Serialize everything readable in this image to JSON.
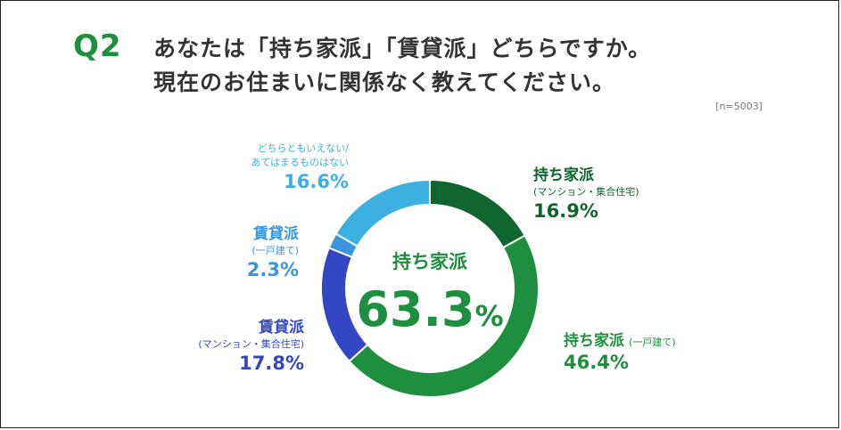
{
  "question": {
    "number": "Q2",
    "line1": "あなたは「持ち家派」「賃貸派」どちらですか。",
    "line2": "現在のお住まいに関係なく教えてください。",
    "sample": "[n=5003]"
  },
  "center": {
    "title": "持ち家派",
    "value": "63.3",
    "unit": "%"
  },
  "colors": {
    "accent": "#1e8f3e",
    "own_mansion": "#0f6530",
    "own_house": "#1e8f3e",
    "rent_mansion": "#3347c4",
    "rent_house": "#3a95dc",
    "neither": "#3eb0e0"
  },
  "chart_data": {
    "type": "pie",
    "donut": true,
    "start_angle_deg": 0,
    "direction": "clockwise",
    "slices": [
      {
        "key": "own_mansion",
        "name": "持ち家派",
        "sub": "(マンション・集合住宅)",
        "value": 16.9,
        "label": "16.9%",
        "color": "#0f6530"
      },
      {
        "key": "own_house",
        "name": "持ち家派",
        "sub": "(一戸建て)",
        "value": 46.4,
        "label": "46.4%",
        "color": "#1e8f3e"
      },
      {
        "key": "rent_mansion",
        "name": "賃貸派",
        "sub": "(マンション・集合住宅)",
        "value": 17.8,
        "label": "17.8%",
        "color": "#3347c4"
      },
      {
        "key": "rent_house",
        "name": "賃貸派",
        "sub": "(一戸建て)",
        "value": 2.3,
        "label": "2.3%",
        "color": "#3a95dc"
      },
      {
        "key": "neither",
        "name": "どちらともいえない/",
        "sub": "あてはまるものはない",
        "value": 16.6,
        "label": "16.6%",
        "color": "#3eb0e0"
      }
    ]
  }
}
